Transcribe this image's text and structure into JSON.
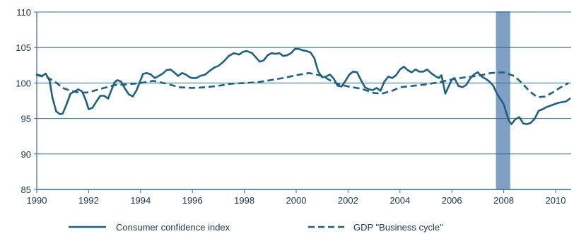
{
  "chart_data": {
    "type": "line",
    "title": "",
    "xlabel": "",
    "ylabel": "",
    "xlim": [
      1990,
      2010.6
    ],
    "ylim": [
      85,
      110
    ],
    "x_ticks": [
      1990,
      1992,
      1994,
      1996,
      1998,
      2000,
      2002,
      2004,
      2006,
      2008,
      2010
    ],
    "y_ticks": [
      85,
      90,
      95,
      100,
      105,
      110
    ],
    "grid": "horizontal",
    "legend_position": "bottom",
    "shaded_region": {
      "x_start": 2007.7,
      "x_end": 2008.25,
      "color": "#7f9fc4"
    },
    "series": [
      {
        "name": "Consumer confidence index",
        "style": "solid",
        "color": "#1e5f82",
        "points": [
          [
            1990.0,
            101.2
          ],
          [
            1990.2,
            101.0
          ],
          [
            1990.35,
            101.3
          ],
          [
            1990.5,
            100.3
          ],
          [
            1990.6,
            98.0
          ],
          [
            1990.75,
            96.0
          ],
          [
            1990.9,
            95.6
          ],
          [
            1991.0,
            95.7
          ],
          [
            1991.15,
            97.0
          ],
          [
            1991.3,
            98.5
          ],
          [
            1991.45,
            98.8
          ],
          [
            1991.6,
            99.1
          ],
          [
            1991.75,
            98.8
          ],
          [
            1991.9,
            97.5
          ],
          [
            1992.0,
            96.3
          ],
          [
            1992.15,
            96.5
          ],
          [
            1992.3,
            97.4
          ],
          [
            1992.45,
            98.2
          ],
          [
            1992.6,
            98.2
          ],
          [
            1992.75,
            97.8
          ],
          [
            1992.9,
            99.2
          ],
          [
            1993.0,
            100.1
          ],
          [
            1993.1,
            100.4
          ],
          [
            1993.25,
            100.2
          ],
          [
            1993.4,
            99.2
          ],
          [
            1993.55,
            98.4
          ],
          [
            1993.7,
            98.1
          ],
          [
            1993.85,
            99.0
          ],
          [
            1994.0,
            100.4
          ],
          [
            1994.1,
            101.3
          ],
          [
            1994.25,
            101.4
          ],
          [
            1994.4,
            101.2
          ],
          [
            1994.55,
            100.7
          ],
          [
            1994.7,
            101.0
          ],
          [
            1994.85,
            101.3
          ],
          [
            1995.0,
            101.8
          ],
          [
            1995.15,
            101.9
          ],
          [
            1995.3,
            101.5
          ],
          [
            1995.45,
            101.0
          ],
          [
            1995.6,
            101.4
          ],
          [
            1995.75,
            101.2
          ],
          [
            1995.9,
            100.8
          ],
          [
            1996.0,
            100.7
          ],
          [
            1996.15,
            100.7
          ],
          [
            1996.3,
            101.0
          ],
          [
            1996.5,
            101.2
          ],
          [
            1996.7,
            101.8
          ],
          [
            1996.85,
            102.2
          ],
          [
            1997.0,
            102.4
          ],
          [
            1997.2,
            103.0
          ],
          [
            1997.4,
            103.8
          ],
          [
            1997.6,
            104.2
          ],
          [
            1997.8,
            104.0
          ],
          [
            1997.95,
            104.4
          ],
          [
            1998.1,
            104.5
          ],
          [
            1998.3,
            104.2
          ],
          [
            1998.45,
            103.6
          ],
          [
            1998.6,
            103.0
          ],
          [
            1998.75,
            103.2
          ],
          [
            1998.9,
            103.9
          ],
          [
            1999.05,
            104.2
          ],
          [
            1999.2,
            104.1
          ],
          [
            1999.35,
            104.2
          ],
          [
            1999.5,
            103.8
          ],
          [
            1999.65,
            103.9
          ],
          [
            1999.8,
            104.2
          ],
          [
            1999.95,
            104.8
          ],
          [
            2000.1,
            104.8
          ],
          [
            2000.25,
            104.6
          ],
          [
            2000.4,
            104.5
          ],
          [
            2000.55,
            104.3
          ],
          [
            2000.7,
            103.5
          ],
          [
            2000.85,
            101.6
          ],
          [
            2001.0,
            100.8
          ],
          [
            2001.15,
            100.9
          ],
          [
            2001.3,
            101.2
          ],
          [
            2001.45,
            100.6
          ],
          [
            2001.6,
            99.6
          ],
          [
            2001.75,
            99.5
          ],
          [
            2001.9,
            100.3
          ],
          [
            2002.05,
            101.2
          ],
          [
            2002.2,
            101.6
          ],
          [
            2002.35,
            101.5
          ],
          [
            2002.5,
            100.4
          ],
          [
            2002.65,
            99.4
          ],
          [
            2002.8,
            99.1
          ],
          [
            2002.95,
            99.0
          ],
          [
            2003.1,
            99.3
          ],
          [
            2003.25,
            98.9
          ],
          [
            2003.4,
            100.2
          ],
          [
            2003.55,
            100.9
          ],
          [
            2003.7,
            100.7
          ],
          [
            2003.85,
            101.1
          ],
          [
            2004.0,
            101.9
          ],
          [
            2004.15,
            102.3
          ],
          [
            2004.3,
            101.8
          ],
          [
            2004.45,
            101.5
          ],
          [
            2004.6,
            101.9
          ],
          [
            2004.75,
            101.6
          ],
          [
            2004.9,
            101.6
          ],
          [
            2005.05,
            101.9
          ],
          [
            2005.2,
            101.4
          ],
          [
            2005.35,
            101.0
          ],
          [
            2005.5,
            100.7
          ],
          [
            2005.6,
            101.1
          ],
          [
            2005.75,
            98.5
          ],
          [
            2005.9,
            99.7
          ],
          [
            2006.0,
            100.5
          ],
          [
            2006.1,
            100.7
          ],
          [
            2006.25,
            99.6
          ],
          [
            2006.4,
            99.4
          ],
          [
            2006.55,
            99.7
          ],
          [
            2006.7,
            100.6
          ],
          [
            2006.85,
            101.2
          ],
          [
            2007.0,
            101.5
          ],
          [
            2007.15,
            100.9
          ],
          [
            2007.3,
            100.6
          ],
          [
            2007.45,
            100.2
          ],
          [
            2007.6,
            99.6
          ],
          [
            2007.75,
            98.4
          ],
          [
            2007.9,
            97.6
          ],
          [
            2008.0,
            97.0
          ],
          [
            2008.1,
            95.8
          ],
          [
            2008.2,
            94.7
          ],
          [
            2008.3,
            94.2
          ],
          [
            2008.45,
            94.9
          ],
          [
            2008.6,
            95.2
          ],
          [
            2008.75,
            94.3
          ],
          [
            2008.9,
            94.2
          ],
          [
            2009.05,
            94.4
          ],
          [
            2009.2,
            95.0
          ],
          [
            2009.35,
            96.1
          ],
          [
            2009.5,
            96.3
          ],
          [
            2009.65,
            96.6
          ],
          [
            2009.8,
            96.8
          ],
          [
            2009.95,
            97.0
          ],
          [
            2010.1,
            97.2
          ],
          [
            2010.25,
            97.3
          ],
          [
            2010.4,
            97.4
          ],
          [
            2010.55,
            97.8
          ]
        ]
      },
      {
        "name": "GDP \"Business cycle\"",
        "style": "dashed",
        "color": "#1e5f82",
        "points": [
          [
            1990.0,
            101.1
          ],
          [
            1990.4,
            100.8
          ],
          [
            1990.7,
            100.2
          ],
          [
            1991.0,
            99.3
          ],
          [
            1991.3,
            98.9
          ],
          [
            1991.7,
            98.6
          ],
          [
            1992.0,
            98.7
          ],
          [
            1992.5,
            99.2
          ],
          [
            1993.0,
            99.7
          ],
          [
            1993.5,
            99.8
          ],
          [
            1994.0,
            100.0
          ],
          [
            1994.5,
            100.3
          ],
          [
            1995.0,
            99.9
          ],
          [
            1995.5,
            99.4
          ],
          [
            1996.0,
            99.3
          ],
          [
            1996.5,
            99.4
          ],
          [
            1997.0,
            99.6
          ],
          [
            1997.5,
            99.9
          ],
          [
            1998.0,
            100.0
          ],
          [
            1998.5,
            100.1
          ],
          [
            1999.0,
            100.4
          ],
          [
            1999.5,
            100.7
          ],
          [
            2000.0,
            101.1
          ],
          [
            2000.5,
            101.4
          ],
          [
            2001.0,
            101.0
          ],
          [
            2001.5,
            100.0
          ],
          [
            2002.0,
            99.5
          ],
          [
            2002.5,
            99.2
          ],
          [
            2003.0,
            98.6
          ],
          [
            2003.3,
            98.5
          ],
          [
            2003.7,
            98.9
          ],
          [
            2004.0,
            99.4
          ],
          [
            2004.5,
            99.6
          ],
          [
            2005.0,
            99.8
          ],
          [
            2005.5,
            100.1
          ],
          [
            2006.0,
            100.5
          ],
          [
            2006.5,
            100.8
          ],
          [
            2007.0,
            101.0
          ],
          [
            2007.5,
            101.4
          ],
          [
            2008.0,
            101.5
          ],
          [
            2008.4,
            101.0
          ],
          [
            2008.7,
            100.0
          ],
          [
            2009.0,
            98.8
          ],
          [
            2009.3,
            98.0
          ],
          [
            2009.6,
            98.1
          ],
          [
            2009.9,
            98.7
          ],
          [
            2010.2,
            99.4
          ],
          [
            2010.5,
            100.0
          ]
        ]
      }
    ]
  }
}
